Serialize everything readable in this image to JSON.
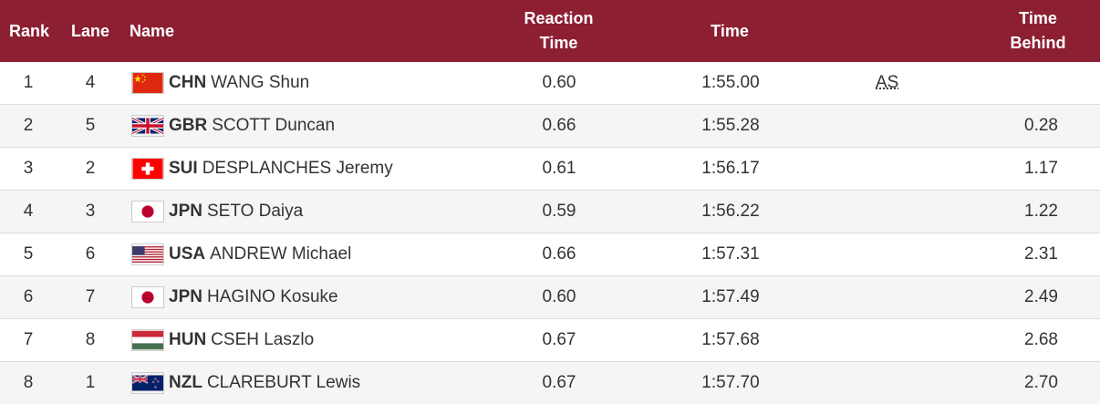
{
  "header": {
    "rank": "Rank",
    "lane": "Lane",
    "name": "Name",
    "reaction_line1": "Reaction",
    "reaction_line2": "Time",
    "time": "Time",
    "behind_line1": "Time",
    "behind_line2": "Behind"
  },
  "colors": {
    "header_bg": "#8c1f32",
    "header_text": "#ffffff",
    "row_alt_bg": "#f5f5f5"
  },
  "rows": [
    {
      "rank": "1",
      "lane": "4",
      "noc": "CHN",
      "name": "WANG Shun",
      "flag": "china-flag-icon",
      "reaction": "0.60",
      "time": "1:55.00",
      "record": "AS",
      "behind": ""
    },
    {
      "rank": "2",
      "lane": "5",
      "noc": "GBR",
      "name": "SCOTT Duncan",
      "flag": "uk-flag-icon",
      "reaction": "0.66",
      "time": "1:55.28",
      "record": "",
      "behind": "0.28"
    },
    {
      "rank": "3",
      "lane": "2",
      "noc": "SUI",
      "name": "DESPLANCHES Jeremy",
      "flag": "switzerland-flag-icon",
      "reaction": "0.61",
      "time": "1:56.17",
      "record": "",
      "behind": "1.17"
    },
    {
      "rank": "4",
      "lane": "3",
      "noc": "JPN",
      "name": "SETO Daiya",
      "flag": "japan-flag-icon",
      "reaction": "0.59",
      "time": "1:56.22",
      "record": "",
      "behind": "1.22"
    },
    {
      "rank": "5",
      "lane": "6",
      "noc": "USA",
      "name": "ANDREW Michael",
      "flag": "usa-flag-icon",
      "reaction": "0.66",
      "time": "1:57.31",
      "record": "",
      "behind": "2.31"
    },
    {
      "rank": "6",
      "lane": "7",
      "noc": "JPN",
      "name": "HAGINO Kosuke",
      "flag": "japan-flag-icon",
      "reaction": "0.60",
      "time": "1:57.49",
      "record": "",
      "behind": "2.49"
    },
    {
      "rank": "7",
      "lane": "8",
      "noc": "HUN",
      "name": "CSEH Laszlo",
      "flag": "hungary-flag-icon",
      "reaction": "0.67",
      "time": "1:57.68",
      "record": "",
      "behind": "2.68"
    },
    {
      "rank": "8",
      "lane": "1",
      "noc": "NZL",
      "name": "CLAREBURT Lewis",
      "flag": "new-zealand-flag-icon",
      "reaction": "0.67",
      "time": "1:57.70",
      "record": "",
      "behind": "2.70"
    }
  ]
}
